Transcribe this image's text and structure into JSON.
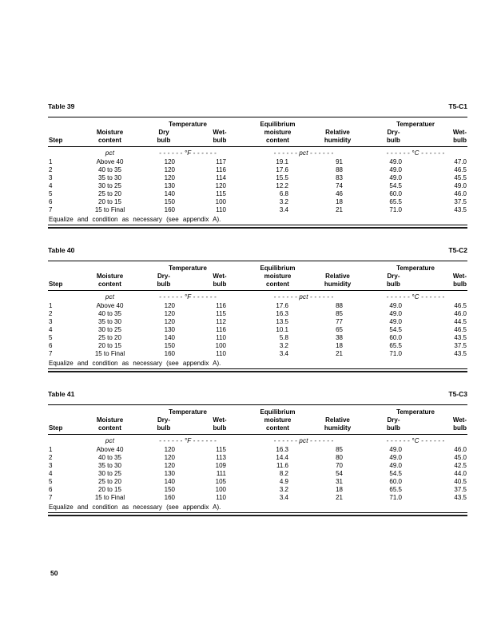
{
  "page": {
    "number": "50"
  },
  "tables": [
    {
      "title": "Table 39",
      "code": "T5-C1",
      "header": {
        "step": "Step",
        "moisture_l1": "Moisture",
        "moisture_l2": "content",
        "group_f": "Temperature",
        "dry_f_l1": "Dry",
        "dry_f_l2": "bulb",
        "wet_f_l1": "Wet-",
        "wet_f_l2": "bulb",
        "emc_l1": "Equilibrium",
        "emc_l2": "moisture",
        "emc_l3": "content",
        "rh_l1": "Relative",
        "rh_l2": "humidity",
        "group_c": "Temperatuer",
        "dry_c_l1": "Dry-",
        "dry_c_l2": "bulb",
        "wet_c_l1": "Wet-",
        "wet_c_l2": "bulb"
      },
      "units": {
        "pct": "pct",
        "f": "- - - - - - °F - - - - - -",
        "pct2": "- - - - - - pct - - - - - -",
        "c": "- - - - - - °C - - - - - -"
      },
      "rows": [
        [
          "1",
          "Above 40",
          "120",
          "117",
          "19.1",
          "91",
          "49.0",
          "47.0"
        ],
        [
          "2",
          "40 to 35",
          "120",
          "116",
          "17.6",
          "88",
          "49.0",
          "46.5"
        ],
        [
          "3",
          "35 to 30",
          "120",
          "114",
          "15.5",
          "83",
          "49.0",
          "45.5"
        ],
        [
          "4",
          "30 to 25",
          "130",
          "120",
          "12.2",
          "74",
          "54.5",
          "49.0"
        ],
        [
          "5",
          "25 to 20",
          "140",
          "115",
          "6.8",
          "46",
          "60.0",
          "46.0"
        ],
        [
          "6",
          "20 to 15",
          "150",
          "100",
          "3.2",
          "18",
          "65.5",
          "37.5"
        ],
        [
          "7",
          "15 to Final",
          "160",
          "110",
          "3.4",
          "21",
          "71.0",
          "43.5"
        ]
      ],
      "footer": "Equalize and condition as necessary (see appendix A)."
    },
    {
      "title": "Table 40",
      "code": "T5-C2",
      "header": {
        "step": "Step",
        "moisture_l1": "Moisture",
        "moisture_l2": "content",
        "group_f": "Temperature",
        "dry_f_l1": "Dry-",
        "dry_f_l2": "bulb",
        "wet_f_l1": "Wet-",
        "wet_f_l2": "bulb",
        "emc_l1": "Equilibrium",
        "emc_l2": "moisture",
        "emc_l3": "content",
        "rh_l1": "Relative",
        "rh_l2": "humidity",
        "group_c": "Temperature",
        "dry_c_l1": "Dry-",
        "dry_c_l2": "bulb",
        "wet_c_l1": "Wet-",
        "wet_c_l2": "bulb"
      },
      "units": {
        "pct": "pct",
        "f": "- - - - - - °F - - - - - -",
        "pct2": "- - - - - - pct - - - - - -",
        "c": "- - - - - - °C - - - - - -"
      },
      "rows": [
        [
          "1",
          "Above 40",
          "120",
          "116",
          "17.6",
          "88",
          "49.0",
          "46.5"
        ],
        [
          "2",
          "40 to 35",
          "120",
          "115",
          "16.3",
          "85",
          "49.0",
          "46.0"
        ],
        [
          "3",
          "35 to 30",
          "120",
          "112",
          "13.5",
          "77",
          "49.0",
          "44.5"
        ],
        [
          "4",
          "30 to 25",
          "130",
          "116",
          "10.1",
          "65",
          "54.5",
          "46.5"
        ],
        [
          "5",
          "25 to 20",
          "140",
          "110",
          "5.8",
          "38",
          "60.0",
          "43.5"
        ],
        [
          "6",
          "20 to 15",
          "150",
          "100",
          "3.2",
          "18",
          "65.5",
          "37.5"
        ],
        [
          "7",
          "15 to Final",
          "160",
          "110",
          "3.4",
          "21",
          "71.0",
          "43.5"
        ]
      ],
      "footer": "Equalize and condition as necessary (see appendix A)."
    },
    {
      "title": "Table 41",
      "code": "T5-C3",
      "header": {
        "step": "Step",
        "moisture_l1": "Moisture",
        "moisture_l2": "content",
        "group_f": "Temperature",
        "dry_f_l1": "Dry-",
        "dry_f_l2": "bulb",
        "wet_f_l1": "Wet-",
        "wet_f_l2": "bulb",
        "emc_l1": "Equilibrium",
        "emc_l2": "moisture",
        "emc_l3": "content",
        "rh_l1": "Relative",
        "rh_l2": "humidity",
        "group_c": "Temperature",
        "dry_c_l1": "Dry-",
        "dry_c_l2": "bulb",
        "wet_c_l1": "Wet-",
        "wet_c_l2": "bulb"
      },
      "units": {
        "pct": "pct",
        "f": "- - - - - - °F - - - - - -",
        "pct2": "- - - - - - pct - - - - - -",
        "c": "- - - - - - °C - - - - - -"
      },
      "rows": [
        [
          "1",
          "Above 40",
          "120",
          "115",
          "16.3",
          "85",
          "49.0",
          "46.0"
        ],
        [
          "2",
          "40 to 35",
          "120",
          "113",
          "14.4",
          "80",
          "49.0",
          "45.0"
        ],
        [
          "3",
          "35 to 30",
          "120",
          "109",
          "11.6",
          "70",
          "49.0",
          "42.5"
        ],
        [
          "4",
          "30 to 25",
          "130",
          "111",
          "8.2",
          "54",
          "54.5",
          "44.0"
        ],
        [
          "5",
          "25 to 20",
          "140",
          "105",
          "4.9",
          "31",
          "60.0",
          "40.5"
        ],
        [
          "6",
          "20 to 15",
          "150",
          "100",
          "3.2",
          "18",
          "65.5",
          "37.5"
        ],
        [
          "7",
          "15 to Final",
          "160",
          "110",
          "3.4",
          "21",
          "71.0",
          "43.5"
        ]
      ],
      "footer": "Equalize and condition as necessary (see appendix A)."
    }
  ]
}
